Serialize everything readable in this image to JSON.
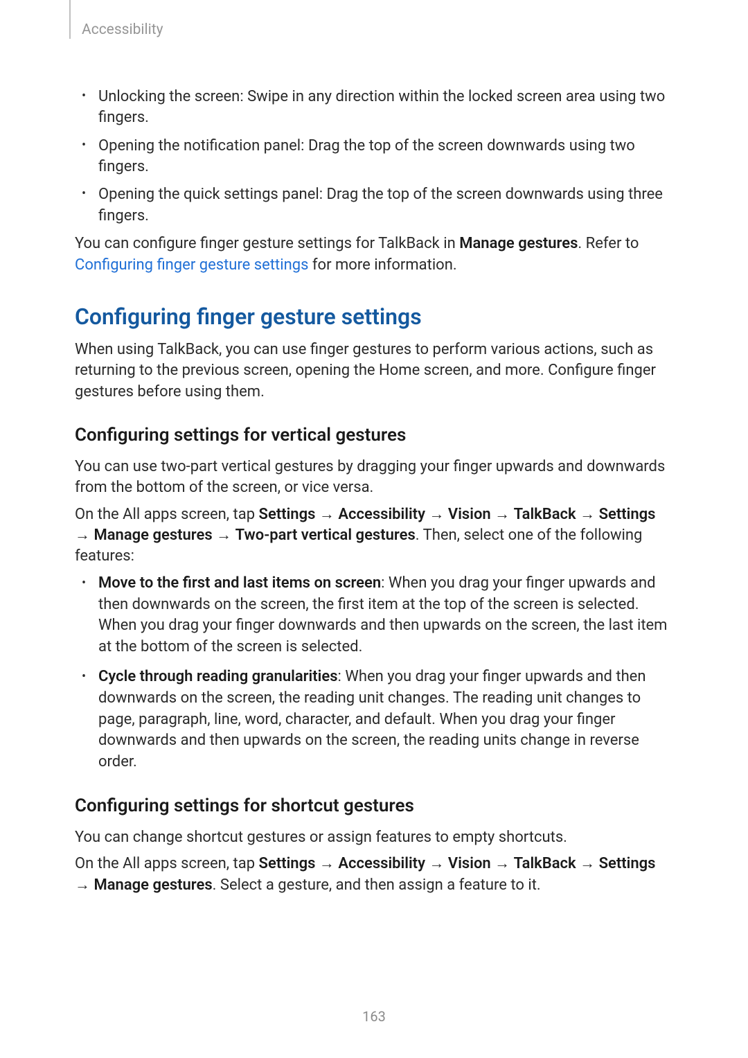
{
  "header": {
    "breadcrumb": "Accessibility"
  },
  "bullets_top": {
    "b1": "Unlocking the screen: Swipe in any direction within the locked screen area using two fingers.",
    "b2": "Opening the notification panel: Drag the top of the screen downwards using two fingers.",
    "b3": "Opening the quick settings panel: Drag the top of the screen downwards using three fingers."
  },
  "intro_para": {
    "pre": "You can configure finger gesture settings for TalkBack in ",
    "bold": "Manage gestures",
    "mid": ". Refer to ",
    "link": "Configuring finger gesture settings",
    "post": " for more information."
  },
  "section1": {
    "title": "Configuring finger gesture settings",
    "p1": "When using TalkBack, you can use finger gestures to perform various actions, such as returning to the previous screen, opening the Home screen, and more. Configure finger gestures before using them."
  },
  "sub_vertical": {
    "title": "Configuring settings for vertical gestures",
    "p1": "You can use two-part vertical gestures by dragging your finger upwards and downwards from the bottom of the screen, or vice versa.",
    "p2_pre": "On the All apps screen, tap ",
    "path1": "Settings",
    "path2": "Accessibility",
    "path3": "Vision",
    "path4": "TalkBack",
    "path5": "Settings",
    "path6": "Manage gestures",
    "path7": "Two-part vertical gestures",
    "p2_post": ". Then, select one of the following features:",
    "arrow": " → ",
    "bullet1_bold": "Move to the first and last items on screen",
    "bullet1_rest": ": When you drag your finger upwards and then downwards on the screen, the first item at the top of the screen is selected. When you drag your finger downwards and then upwards on the screen, the last item at the bottom of the screen is selected.",
    "bullet2_bold": "Cycle through reading granularities",
    "bullet2_rest": ": When you drag your finger upwards and then downwards on the screen, the reading unit changes. The reading unit changes to page, paragraph, line, word, character, and default. When you drag your finger downwards and then upwards on the screen, the reading units change in reverse order."
  },
  "sub_shortcut": {
    "title": "Configuring settings for shortcut gestures",
    "p1": "You can change shortcut gestures or assign features to empty shortcuts.",
    "p2_pre": "On the All apps screen, tap ",
    "path1": "Settings",
    "path2": "Accessibility",
    "path3": "Vision",
    "path4": "TalkBack",
    "path5": "Settings",
    "path6": "Manage gestures",
    "arrow": " → ",
    "p2_post": ". Select a gesture, and then assign a feature to it."
  },
  "footer": {
    "page_number": "163"
  },
  "colors": {
    "heading_blue": "#14599f",
    "link_blue": "#1f6fd6",
    "header_grey": "#969696",
    "rule_grey": "#c0c0c0",
    "body_text": "#2a2a2a",
    "page_num": "#8a8a8a",
    "background": "#ffffff"
  },
  "typography": {
    "body_size_pt": 16,
    "h2_size_pt": 24,
    "h3_size_pt": 20,
    "header_size_pt": 16
  }
}
